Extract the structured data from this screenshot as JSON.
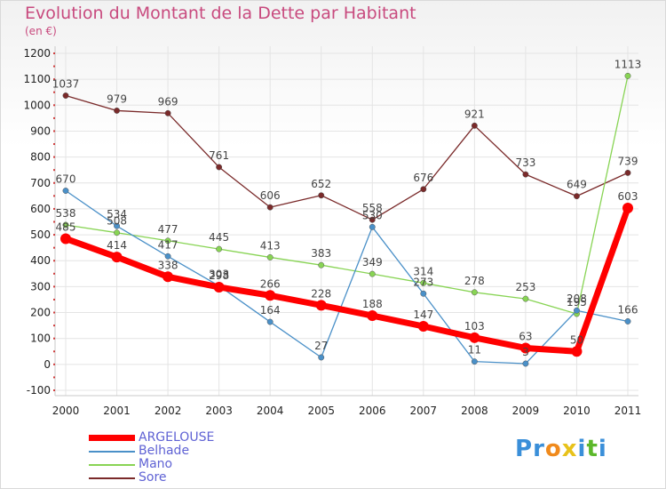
{
  "chart_data": {
    "type": "line",
    "title": "Evolution du Montant de la Dette par Habitant",
    "subtitle": "(en €)",
    "categories": [
      "2000",
      "2001",
      "2002",
      "2003",
      "2004",
      "2005",
      "2006",
      "2007",
      "2008",
      "2009",
      "2010",
      "2011"
    ],
    "ylim": [
      -100,
      1200
    ],
    "yticks": [
      "-100",
      "0",
      "100",
      "200",
      "300",
      "400",
      "500",
      "600",
      "700",
      "800",
      "900",
      "1000",
      "1100",
      "1200"
    ],
    "grid": true,
    "legend_position": "bottom-left",
    "series": [
      {
        "name": "ARGELOUSE",
        "color": "#ff0000",
        "values": [
          485,
          414,
          338,
          298,
          266,
          228,
          188,
          147,
          103,
          63,
          50,
          603
        ],
        "labels": [
          "485",
          "414",
          "338",
          "298",
          "266",
          "228",
          "188",
          "147",
          "103",
          "63",
          "50",
          "603"
        ]
      },
      {
        "name": "Belhade",
        "color": "#4a90c8",
        "values": [
          670,
          534,
          417,
          303,
          164,
          27,
          530,
          273,
          11,
          3,
          208,
          166
        ],
        "labels": [
          "670",
          "534",
          "417",
          "303",
          "164",
          "27",
          "530",
          "273",
          "11",
          "3",
          "208",
          "166"
        ]
      },
      {
        "name": "Mano",
        "color": "#88d454",
        "values": [
          538,
          508,
          477,
          445,
          413,
          383,
          349,
          314,
          278,
          253,
          195,
          1113
        ],
        "labels": [
          "538",
          "508",
          "477",
          "445",
          "413",
          "383",
          "349",
          "314",
          "278",
          "253",
          "195",
          "1113"
        ]
      },
      {
        "name": "Sore",
        "color": "#7a2a2a",
        "values": [
          1037,
          979,
          969,
          761,
          606,
          652,
          558,
          676,
          921,
          733,
          649,
          739
        ],
        "labels": [
          "1037",
          "979",
          "969",
          "761",
          "606",
          "652",
          "558",
          "676",
          "921",
          "733",
          "649",
          "739"
        ]
      }
    ]
  },
  "logo": {
    "letters": [
      "P",
      "r",
      "o",
      "x",
      "i",
      "t",
      "i"
    ],
    "colors": [
      "#3a8fd9",
      "#3a8fd9",
      "#f08a1c",
      "#e8c21a",
      "#3a8fd9",
      "#5cb82a",
      "#3a8fd9"
    ]
  }
}
